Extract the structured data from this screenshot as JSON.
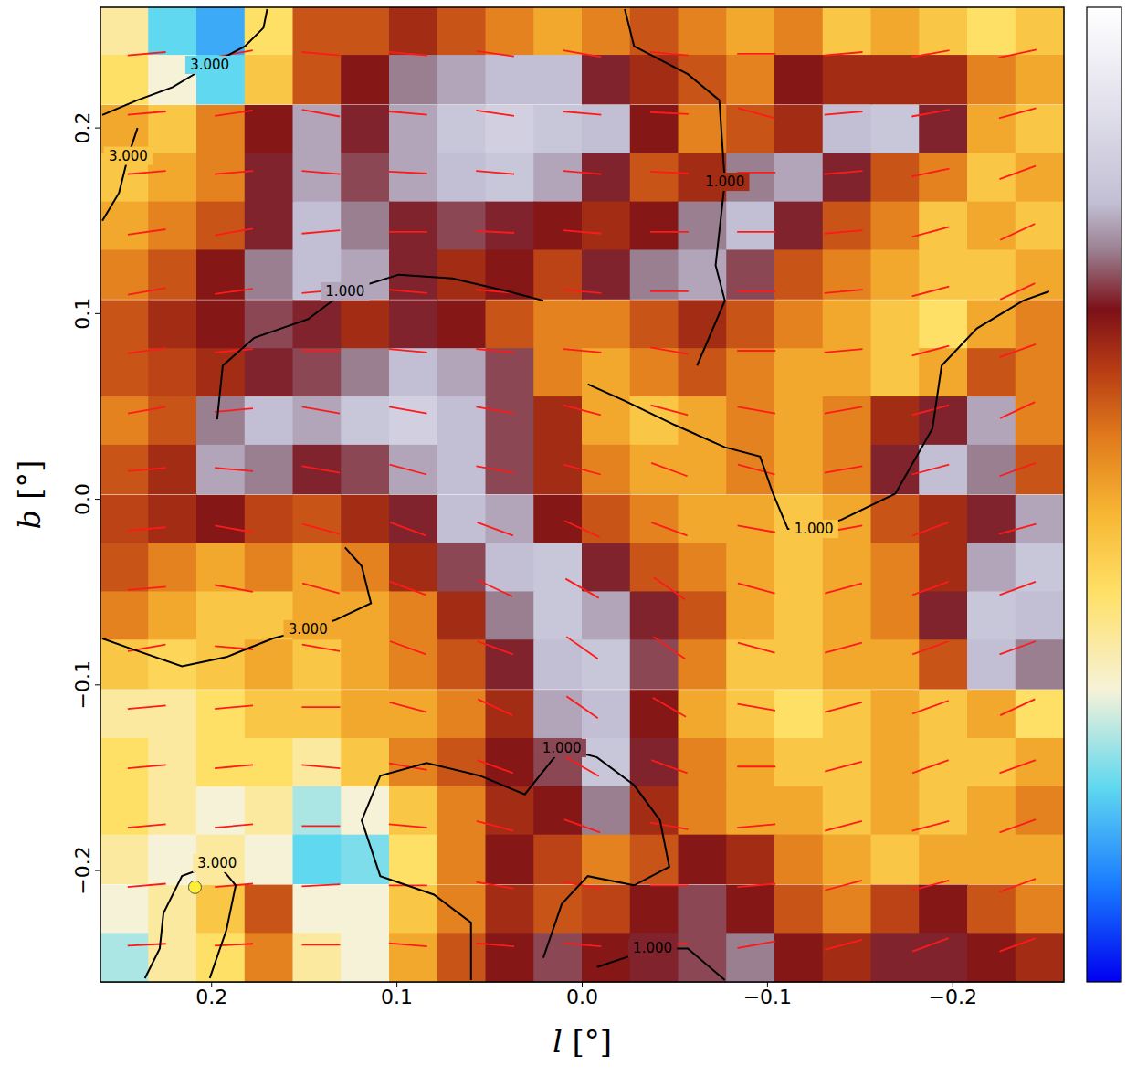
{
  "chart_data": {
    "type": "heatmap",
    "xlabel": "l [°]",
    "ylabel": "b [°]",
    "xlim": [
      0.26,
      -0.26
    ],
    "xticks": [
      0.2,
      0.1,
      {
        "value": 0,
        "label": "0.0"
      },
      {
        "value": -0.1,
        "label": "−0.1"
      },
      {
        "value": -0.2,
        "label": "−0.2"
      }
    ],
    "ylim": [
      -0.26,
      0.265
    ],
    "yticks": [
      {
        "value": -0.2,
        "label": "−0.2"
      },
      {
        "value": -0.1,
        "label": "−0.1"
      },
      {
        "value": 0,
        "label": "0.0"
      },
      0.1,
      0.2
    ],
    "tick_labels": true,
    "colorbar": {
      "range": [
        0,
        1
      ]
    },
    "cells": {
      "l": [
        0.247,
        0.221,
        0.195,
        0.169,
        0.143,
        0.117,
        0.091,
        0.065,
        0.039,
        0.013,
        -0.013,
        -0.039,
        -0.065,
        -0.091,
        -0.117,
        -0.143,
        -0.169,
        -0.195,
        -0.221,
        -0.247
      ],
      "b": [
        0.252,
        0.226,
        0.199,
        0.173,
        0.147,
        0.121,
        0.094,
        0.068,
        0.042,
        0.016,
        -0.011,
        -0.037,
        -0.063,
        -0.089,
        -0.116,
        -0.142,
        -0.168,
        -0.194,
        -0.221,
        -0.247
      ],
      "values": [
        [
          0.35,
          0.2,
          0.15,
          0.4,
          0.6,
          0.6,
          0.65,
          0.6,
          0.55,
          0.5,
          0.55,
          0.6,
          0.55,
          0.5,
          0.55,
          0.45,
          0.5,
          0.45,
          0.4,
          0.45
        ],
        [
          0.4,
          0.3,
          0.2,
          0.45,
          0.6,
          0.68,
          0.75,
          0.78,
          0.8,
          0.8,
          0.7,
          0.65,
          0.6,
          0.55,
          0.68,
          0.65,
          0.65,
          0.65,
          0.55,
          0.5
        ],
        [
          0.5,
          0.45,
          0.55,
          0.68,
          0.78,
          0.7,
          0.78,
          0.82,
          0.85,
          0.82,
          0.8,
          0.68,
          0.55,
          0.6,
          0.65,
          0.8,
          0.82,
          0.7,
          0.5,
          0.45
        ],
        [
          0.45,
          0.5,
          0.55,
          0.7,
          0.78,
          0.72,
          0.78,
          0.8,
          0.82,
          0.78,
          0.7,
          0.6,
          0.65,
          0.75,
          0.78,
          0.7,
          0.6,
          0.55,
          0.45,
          0.5
        ],
        [
          0.5,
          0.55,
          0.6,
          0.7,
          0.8,
          0.75,
          0.7,
          0.72,
          0.7,
          0.68,
          0.65,
          0.68,
          0.75,
          0.8,
          0.7,
          0.6,
          0.55,
          0.45,
          0.5,
          0.45
        ],
        [
          0.55,
          0.6,
          0.68,
          0.75,
          0.8,
          0.78,
          0.7,
          0.65,
          0.68,
          0.62,
          0.7,
          0.75,
          0.78,
          0.72,
          0.6,
          0.55,
          0.5,
          0.45,
          0.45,
          0.5
        ],
        [
          0.6,
          0.65,
          0.68,
          0.72,
          0.7,
          0.65,
          0.7,
          0.68,
          0.6,
          0.55,
          0.55,
          0.6,
          0.65,
          0.6,
          0.55,
          0.5,
          0.45,
          0.4,
          0.5,
          0.55
        ],
        [
          0.6,
          0.62,
          0.65,
          0.7,
          0.72,
          0.75,
          0.8,
          0.78,
          0.72,
          0.55,
          0.5,
          0.55,
          0.6,
          0.55,
          0.5,
          0.5,
          0.45,
          0.5,
          0.6,
          0.55
        ],
        [
          0.55,
          0.6,
          0.75,
          0.8,
          0.78,
          0.82,
          0.85,
          0.8,
          0.72,
          0.65,
          0.5,
          0.45,
          0.5,
          0.55,
          0.5,
          0.55,
          0.65,
          0.7,
          0.78,
          0.55
        ],
        [
          0.6,
          0.65,
          0.78,
          0.75,
          0.7,
          0.72,
          0.78,
          0.8,
          0.72,
          0.65,
          0.55,
          0.5,
          0.5,
          0.55,
          0.5,
          0.55,
          0.7,
          0.8,
          0.75,
          0.6
        ],
        [
          0.62,
          0.65,
          0.68,
          0.62,
          0.6,
          0.65,
          0.7,
          0.8,
          0.78,
          0.68,
          0.6,
          0.55,
          0.5,
          0.5,
          0.45,
          0.5,
          0.6,
          0.65,
          0.7,
          0.78
        ],
        [
          0.6,
          0.55,
          0.5,
          0.55,
          0.5,
          0.55,
          0.65,
          0.72,
          0.8,
          0.82,
          0.7,
          0.6,
          0.55,
          0.5,
          0.45,
          0.5,
          0.55,
          0.65,
          0.78,
          0.82
        ],
        [
          0.55,
          0.5,
          0.45,
          0.45,
          0.5,
          0.5,
          0.55,
          0.65,
          0.75,
          0.82,
          0.78,
          0.7,
          0.6,
          0.5,
          0.45,
          0.5,
          0.55,
          0.7,
          0.82,
          0.8
        ],
        [
          0.45,
          0.42,
          0.45,
          0.5,
          0.45,
          0.5,
          0.55,
          0.6,
          0.7,
          0.8,
          0.82,
          0.72,
          0.55,
          0.45,
          0.45,
          0.5,
          0.5,
          0.6,
          0.8,
          0.75
        ],
        [
          0.35,
          0.35,
          0.4,
          0.45,
          0.45,
          0.5,
          0.5,
          0.55,
          0.65,
          0.78,
          0.8,
          0.68,
          0.5,
          0.45,
          0.4,
          0.45,
          0.5,
          0.45,
          0.5,
          0.4
        ],
        [
          0.4,
          0.35,
          0.4,
          0.4,
          0.35,
          0.45,
          0.55,
          0.6,
          0.68,
          0.72,
          0.82,
          0.7,
          0.55,
          0.5,
          0.45,
          0.45,
          0.5,
          0.45,
          0.45,
          0.5
        ],
        [
          0.4,
          0.35,
          0.3,
          0.35,
          0.25,
          0.3,
          0.45,
          0.55,
          0.65,
          0.68,
          0.75,
          0.65,
          0.55,
          0.5,
          0.5,
          0.45,
          0.5,
          0.45,
          0.5,
          0.55
        ],
        [
          0.35,
          0.3,
          0.35,
          0.3,
          0.2,
          0.22,
          0.4,
          0.55,
          0.68,
          0.62,
          0.55,
          0.6,
          0.68,
          0.65,
          0.55,
          0.5,
          0.45,
          0.5,
          0.5,
          0.5
        ],
        [
          0.3,
          0.35,
          0.45,
          0.6,
          0.3,
          0.3,
          0.45,
          0.55,
          0.65,
          0.6,
          0.62,
          0.68,
          0.72,
          0.68,
          0.6,
          0.55,
          0.62,
          0.68,
          0.6,
          0.55
        ],
        [
          0.25,
          0.35,
          0.4,
          0.55,
          0.35,
          0.3,
          0.5,
          0.6,
          0.68,
          0.72,
          0.68,
          0.7,
          0.72,
          0.75,
          0.68,
          0.65,
          0.7,
          0.7,
          0.68,
          0.65
        ]
      ]
    },
    "polarization": {
      "color": "#ff1a1a",
      "l": [
        0.235,
        0.188,
        0.141,
        0.094,
        0.047,
        0,
        -0.047,
        -0.094,
        -0.141,
        -0.188,
        -0.235
      ],
      "b": [
        0.24,
        0.208,
        0.176,
        0.144,
        0.112,
        0.08,
        0.048,
        0.016,
        -0.016,
        -0.048,
        -0.08,
        -0.112,
        -0.144,
        -0.176,
        -0.208,
        -0.24
      ],
      "angles": [
        [
          5,
          10,
          -5,
          -5,
          -8,
          -10,
          -5,
          0,
          5,
          10,
          12
        ],
        [
          5,
          8,
          -10,
          -5,
          -8,
          -5,
          -3,
          -15,
          5,
          10,
          15
        ],
        [
          5,
          5,
          -5,
          -3,
          -5,
          -5,
          -3,
          0,
          5,
          12,
          20
        ],
        [
          8,
          10,
          5,
          0,
          -3,
          -5,
          0,
          0,
          5,
          15,
          25
        ],
        [
          10,
          8,
          5,
          -5,
          -5,
          -5,
          0,
          0,
          5,
          15,
          25
        ],
        [
          8,
          5,
          0,
          -5,
          -5,
          -5,
          -10,
          0,
          5,
          15,
          20
        ],
        [
          10,
          5,
          -10,
          -10,
          -10,
          -15,
          -15,
          -10,
          10,
          15,
          25
        ],
        [
          5,
          -5,
          -10,
          -15,
          -10,
          -15,
          -20,
          -15,
          10,
          15,
          20
        ],
        [
          5,
          -10,
          -15,
          -20,
          -20,
          -25,
          -20,
          -10,
          10,
          20,
          15
        ],
        [
          5,
          -10,
          -15,
          -20,
          -25,
          -30,
          -35,
          -15,
          15,
          20,
          20
        ],
        [
          10,
          -5,
          -10,
          -20,
          -20,
          -35,
          -35,
          -15,
          15,
          20,
          20
        ],
        [
          5,
          5,
          0,
          -15,
          -25,
          -35,
          -30,
          -10,
          15,
          20,
          25
        ],
        [
          5,
          5,
          -5,
          -10,
          -20,
          -30,
          -20,
          0,
          15,
          20,
          20
        ],
        [
          5,
          5,
          0,
          -5,
          -15,
          -20,
          -10,
          5,
          15,
          15,
          20
        ],
        [
          5,
          5,
          3,
          0,
          -10,
          -10,
          0,
          5,
          15,
          15,
          20
        ],
        [
          3,
          3,
          0,
          -5,
          -5,
          -5,
          5,
          10,
          15,
          20,
          20
        ]
      ]
    },
    "contours": [
      {
        "label": "1.000",
        "points": [
          [
            0.197,
            0.043
          ],
          [
            0.194,
            0.072
          ],
          [
            0.177,
            0.087
          ],
          [
            0.148,
            0.097
          ],
          [
            0.128,
            0.112
          ],
          [
            0.099,
            0.121
          ],
          [
            0.07,
            0.119
          ],
          [
            0.04,
            0.112
          ],
          [
            0.021,
            0.107
          ]
        ]
      },
      {
        "label": "1.000",
        "points": [
          [
            -0.003,
            0.062
          ],
          [
            -0.023,
            0.053
          ],
          [
            -0.05,
            0.04
          ],
          [
            -0.077,
            0.028
          ],
          [
            -0.096,
            0.023
          ],
          [
            -0.103,
            0.003
          ],
          [
            -0.111,
            -0.016
          ],
          [
            -0.125,
            -0.016
          ],
          [
            -0.14,
            -0.011
          ],
          [
            -0.169,
            0.003
          ],
          [
            -0.189,
            0.038
          ],
          [
            -0.194,
            0.072
          ],
          [
            -0.213,
            0.092
          ],
          [
            -0.238,
            0.107
          ],
          [
            -0.252,
            0.112
          ]
        ]
      },
      {
        "label": "1.000",
        "points": [
          [
            -0.023,
            0.264
          ],
          [
            -0.028,
            0.244
          ],
          [
            -0.057,
            0.229
          ],
          [
            -0.074,
            0.215
          ],
          [
            -0.077,
            0.171
          ],
          [
            -0.072,
            0.126
          ],
          [
            -0.077,
            0.107
          ],
          [
            -0.062,
            0.072
          ]
        ]
      },
      {
        "label": "1.000",
        "points": [
          [
            0.06,
            -0.259
          ],
          [
            0.06,
            -0.228
          ],
          [
            0.08,
            -0.213
          ],
          [
            0.109,
            -0.203
          ],
          [
            0.119,
            -0.173
          ],
          [
            0.109,
            -0.149
          ],
          [
            0.084,
            -0.142
          ],
          [
            0.055,
            -0.149
          ],
          [
            0.031,
            -0.159
          ],
          [
            0.011,
            -0.134
          ],
          [
            -0.008,
            -0.139
          ],
          [
            -0.028,
            -0.154
          ],
          [
            -0.042,
            -0.173
          ],
          [
            -0.047,
            -0.198
          ],
          [
            -0.028,
            -0.208
          ],
          [
            -0.003,
            -0.203
          ],
          [
            0.011,
            -0.218
          ],
          [
            0.021,
            -0.247
          ]
        ]
      },
      {
        "label": "1.000",
        "points": [
          [
            -0.077,
            -0.259
          ],
          [
            -0.057,
            -0.242
          ],
          [
            -0.038,
            -0.242
          ],
          [
            -0.008,
            -0.252
          ]
        ]
      },
      {
        "label": "3.000",
        "points": [
          [
            0.259,
            0.207
          ],
          [
            0.24,
            0.215
          ],
          [
            0.221,
            0.222
          ],
          [
            0.201,
            0.234
          ],
          [
            0.182,
            0.244
          ],
          [
            0.172,
            0.254
          ],
          [
            0.17,
            0.264
          ]
        ]
      },
      {
        "label": "3.000",
        "points": [
          [
            0.259,
            -0.075
          ],
          [
            0.245,
            -0.08
          ],
          [
            0.216,
            -0.09
          ],
          [
            0.192,
            -0.085
          ],
          [
            0.167,
            -0.075
          ],
          [
            0.148,
            -0.07
          ],
          [
            0.133,
            -0.065
          ],
          [
            0.114,
            -0.056
          ],
          [
            0.119,
            -0.036
          ],
          [
            0.128,
            -0.026
          ]
        ]
      },
      {
        "label": "3.000",
        "points": [
          [
            0.236,
            -0.258
          ],
          [
            0.228,
            -0.242
          ],
          [
            0.226,
            -0.223
          ],
          [
            0.216,
            -0.203
          ],
          [
            0.197,
            -0.196
          ],
          [
            0.187,
            -0.208
          ],
          [
            0.192,
            -0.232
          ],
          [
            0.201,
            -0.258
          ]
        ]
      },
      {
        "label": "3.000",
        "points": [
          [
            0.259,
            0.15
          ],
          [
            0.25,
            0.165
          ],
          [
            0.245,
            0.185
          ],
          [
            0.24,
            0.2
          ]
        ]
      }
    ],
    "markers": [
      {
        "l": 0.209,
        "b": -0.209,
        "color": "#ffee33"
      }
    ]
  }
}
